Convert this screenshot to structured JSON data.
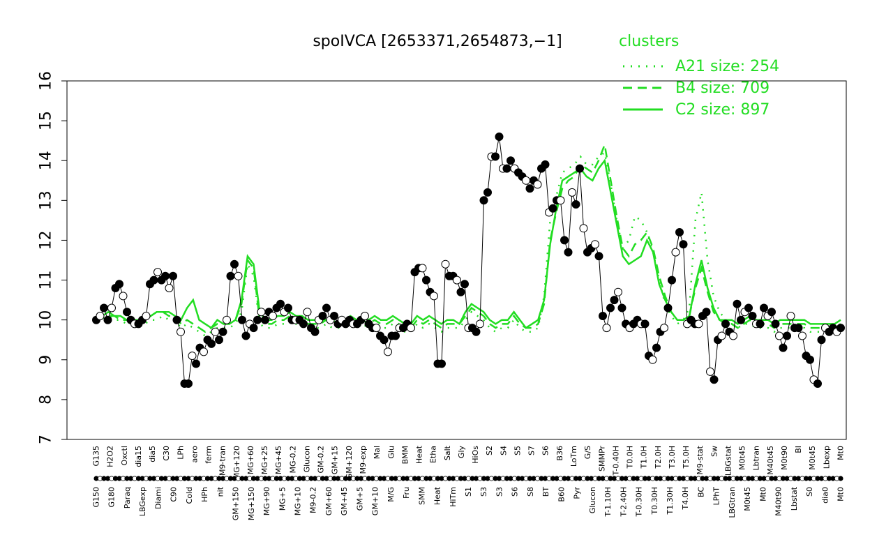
{
  "chart_data": {
    "type": "line",
    "title": "spoIVCA [2653371,2654873,−1]",
    "xlabel": "",
    "ylabel": "",
    "ylim": [
      7,
      16
    ],
    "yticks": [
      7,
      8,
      9,
      10,
      11,
      12,
      13,
      14,
      15,
      16
    ],
    "grid": false,
    "legend": {
      "title": "clusters",
      "placement": "top-right",
      "entries": [
        {
          "label": "A21 size: 254",
          "style": "dotted",
          "color": "#22dd22"
        },
        {
          "label": "B4 size: 709",
          "style": "dashed",
          "color": "#22dd22"
        },
        {
          "label": "C2 size: 897",
          "style": "solid",
          "color": "#22dd22"
        }
      ]
    },
    "x_labels_top": [
      "G135",
      "H2O2",
      "Oxctl",
      "dia15",
      "dia5",
      "C30",
      "LPh",
      "aero",
      "ferm",
      "M9-tran",
      "MG+120",
      "MG+60",
      "MG+25",
      "MG+45",
      "MG-0.2",
      "Glucon",
      "GM-0.2",
      "GM+15",
      "GM+120",
      "M9-exp",
      "Mal",
      "Glu",
      "BMM",
      "Heat",
      "Etha",
      "Salt",
      "Gly",
      "HiOs",
      "S2",
      "S4",
      "S5",
      "S7",
      "S6",
      "B36",
      "LoTm",
      "G/S",
      "SMMPr",
      "T-0.40H",
      "T0.0H",
      "T1.0H",
      "T2.0H",
      "T3.0H",
      "T5.0H",
      "M9-stat",
      "Sw",
      "LBGstat",
      "M0t45",
      "Lbtran",
      "M40t45",
      "M0t90",
      "BI",
      "M0t45",
      "Lbexp",
      "Mt0"
    ],
    "x_labels_bottom": [
      "G150",
      "G180",
      "Paraq",
      "LBGexp",
      "Diami",
      "C90",
      "Cold",
      "HPh",
      "nit",
      "GM+150",
      "MG+150",
      "MG+90",
      "MG+5",
      "MG+10",
      "M9-0.2",
      "GM+60",
      "GM+45",
      "GM+5",
      "GM+10",
      "M/G",
      "Fru",
      "SMM",
      "Heat",
      "HiTm",
      "S1",
      "S3",
      "S3",
      "S6",
      "S8",
      "BT",
      "B60",
      "Pyr",
      "Glucon",
      "T-1.10H",
      "T-2.40H",
      "T-0.30H",
      "T0.30H",
      "T1.30H",
      "T4.0H",
      "BC",
      "LPhT",
      "LBGtran",
      "M0t45",
      "Mt0",
      "M40t90",
      "Lbstat",
      "S0",
      "dia0",
      "Mt0"
    ],
    "series": [
      {
        "name": "C2 size: 897",
        "style": "solid",
        "color": "#22dd22",
        "y": [
          10.0,
          10.1,
          10.2,
          10.1,
          10.1,
          10.0,
          10.0,
          10.0,
          10.0,
          10.1,
          10.2,
          10.2,
          10.2,
          10.1,
          10.0,
          10.3,
          10.5,
          10.0,
          9.9,
          9.8,
          10.0,
          9.9,
          9.9,
          10.0,
          10.5,
          11.6,
          11.4,
          10.2,
          10.0,
          10.0,
          10.1,
          10.1,
          10.2,
          10.1,
          10.1,
          10.0,
          10.0,
          10.0,
          10.0,
          10.0,
          9.9,
          10.0,
          10.1,
          10.0,
          10.1,
          10.0,
          10.1,
          10.0,
          10.0,
          10.1,
          10.0,
          9.9,
          9.9,
          10.1,
          10.0,
          10.1,
          10.0,
          9.9,
          10.0,
          10.0,
          9.9,
          10.2,
          10.4,
          10.3,
          10.2,
          10.0,
          9.9,
          10.0,
          10.0,
          10.2,
          10.0,
          9.8,
          9.9,
          10.0,
          10.5,
          11.9,
          12.8,
          13.5,
          13.6,
          13.7,
          13.8,
          13.6,
          13.5,
          13.8,
          14.0,
          13.2,
          12.4,
          11.6,
          11.4,
          11.5,
          11.6,
          12.0,
          11.7,
          10.9,
          10.5,
          10.2,
          10.0,
          10.0,
          10.1,
          10.9,
          11.5,
          10.8,
          10.3,
          10.0,
          10.0,
          10.0,
          9.9,
          10.0,
          10.1,
          10.0,
          10.0,
          10.0,
          9.9,
          10.0,
          10.0,
          10.0,
          10.0,
          10.0,
          9.9,
          9.9,
          9.9,
          9.9,
          9.9,
          10.0
        ]
      },
      {
        "name": "B4 size: 709",
        "style": "dashed",
        "color": "#22dd22",
        "y": [
          10.0,
          10.1,
          10.1,
          10.1,
          10.0,
          10.0,
          9.9,
          10.0,
          10.0,
          10.1,
          10.2,
          10.2,
          10.1,
          10.1,
          9.9,
          10.0,
          9.9,
          9.8,
          9.7,
          9.8,
          9.9,
          9.9,
          9.9,
          10.0,
          10.4,
          11.5,
          11.3,
          10.0,
          9.9,
          9.9,
          10.0,
          10.0,
          10.1,
          10.0,
          10.0,
          9.9,
          9.9,
          9.9,
          10.0,
          9.9,
          9.9,
          9.9,
          10.0,
          9.9,
          10.0,
          9.9,
          10.0,
          9.9,
          9.9,
          10.0,
          9.9,
          9.8,
          9.8,
          10.0,
          9.9,
          10.0,
          9.9,
          9.8,
          9.9,
          9.9,
          9.9,
          10.1,
          10.3,
          10.2,
          10.1,
          9.9,
          9.8,
          9.9,
          9.9,
          10.1,
          9.9,
          9.8,
          9.8,
          9.9,
          10.4,
          12.0,
          12.7,
          13.3,
          13.5,
          13.6,
          13.9,
          13.8,
          13.7,
          14.0,
          14.4,
          13.5,
          12.6,
          11.8,
          11.6,
          11.9,
          12.0,
          12.2,
          11.8,
          11.1,
          10.6,
          10.2,
          10.0,
          10.0,
          10.1,
          10.8,
          11.3,
          10.7,
          10.2,
          10.0,
          9.9,
          9.9,
          9.8,
          9.9,
          10.0,
          9.9,
          9.9,
          9.9,
          9.8,
          9.9,
          9.9,
          9.9,
          9.9,
          9.9,
          9.8,
          9.8,
          9.8,
          9.8,
          9.8,
          9.9
        ]
      },
      {
        "name": "A21 size: 254",
        "style": "dotted",
        "color": "#22dd22",
        "y": [
          10.0,
          10.0,
          10.1,
          10.0,
          10.0,
          9.9,
          9.9,
          9.9,
          9.9,
          10.0,
          10.0,
          10.1,
          10.0,
          10.0,
          9.8,
          9.9,
          9.8,
          9.7,
          9.6,
          9.7,
          9.8,
          9.8,
          9.8,
          9.9,
          10.2,
          11.4,
          11.1,
          9.9,
          9.8,
          9.8,
          9.9,
          9.9,
          10.0,
          9.9,
          9.9,
          9.8,
          9.8,
          9.8,
          9.9,
          9.8,
          9.8,
          9.8,
          9.9,
          9.8,
          9.9,
          9.8,
          9.9,
          9.8,
          9.8,
          9.9,
          9.8,
          9.7,
          9.7,
          9.9,
          9.8,
          9.9,
          9.8,
          9.7,
          9.8,
          9.8,
          9.8,
          10.0,
          10.2,
          10.1,
          10.0,
          9.8,
          9.7,
          9.8,
          9.8,
          10.0,
          9.8,
          9.7,
          9.7,
          9.8,
          10.6,
          12.5,
          13.1,
          13.7,
          13.8,
          13.9,
          14.1,
          13.9,
          13.9,
          14.1,
          14.2,
          13.4,
          12.5,
          11.8,
          12.0,
          12.6,
          12.5,
          12.2,
          11.7,
          11.0,
          10.4,
          10.1,
          9.9,
          10.0,
          10.3,
          12.5,
          13.2,
          11.5,
          10.6,
          10.2,
          10.0,
          9.9,
          9.8,
          9.9,
          9.9,
          9.8,
          9.8,
          9.8,
          9.7,
          9.8,
          9.8,
          9.8,
          9.8,
          9.8,
          9.7,
          9.7,
          9.7,
          9.7,
          9.7,
          9.8
        ]
      },
      {
        "name": "",
        "style": "solid-points",
        "color": "#000000",
        "y": [
          10.0,
          10.1,
          10.3,
          10.0,
          10.3,
          10.8,
          10.9,
          10.6,
          10.2,
          10.0,
          9.9,
          9.9,
          10.0,
          10.1,
          10.9,
          11.0,
          11.2,
          11.0,
          11.1,
          10.8,
          11.1,
          10.0,
          9.7,
          8.4,
          8.4,
          9.1,
          8.9,
          9.3,
          9.2,
          9.5,
          9.4,
          9.7,
          9.5,
          9.7,
          10.0,
          11.1,
          11.4,
          11.1,
          10.0,
          9.6,
          9.9,
          9.8,
          10.0,
          10.2,
          10.0,
          10.2,
          10.1,
          10.3,
          10.4,
          10.2,
          10.3,
          10.0,
          10.0,
          10.0,
          9.9,
          10.2,
          9.8,
          9.7,
          10.0,
          10.1,
          10.3,
          10.0,
          10.1,
          9.9,
          10.0,
          9.9,
          10.0,
          9.9,
          9.9,
          10.0,
          10.1,
          9.9,
          9.8,
          9.8,
          9.6,
          9.5,
          9.2,
          9.6,
          9.6,
          9.8,
          9.8,
          9.9,
          9.8,
          11.2,
          11.3,
          11.3,
          11.0,
          10.7,
          10.6,
          8.9,
          8.9,
          11.4,
          11.1,
          11.1,
          11.0,
          10.7,
          10.9,
          9.8,
          9.8,
          9.7,
          9.9,
          13.0,
          13.2,
          14.1,
          14.1,
          14.6,
          13.8,
          13.8,
          14.0,
          13.8,
          13.7,
          13.6,
          13.5,
          13.3,
          13.5,
          13.4,
          13.8,
          13.9,
          12.7,
          12.8,
          13.0,
          13.0,
          12.0,
          11.7,
          13.2,
          12.9,
          13.8,
          12.3,
          11.7,
          11.8,
          11.9,
          11.6,
          10.1,
          9.8,
          10.3,
          10.5,
          10.7,
          10.3,
          9.9,
          9.8,
          9.9,
          10.0,
          9.9,
          9.9,
          9.1,
          9.0,
          9.3,
          9.7,
          9.8,
          10.3,
          11.0,
          11.7,
          12.2,
          11.9,
          9.9,
          10.0,
          9.9,
          9.9,
          10.1,
          10.2,
          8.7,
          8.5,
          9.5,
          9.6,
          9.9,
          9.7,
          9.6,
          10.4,
          10.0,
          10.2,
          10.3,
          10.1,
          9.9,
          9.9,
          10.3,
          10.1,
          10.2,
          9.9,
          9.6,
          9.3,
          9.6,
          10.1,
          9.8,
          9.8,
          9.6,
          9.1,
          9.0,
          8.5,
          8.4,
          9.5,
          9.8,
          9.7,
          9.8,
          9.7,
          9.8
        ]
      }
    ]
  }
}
